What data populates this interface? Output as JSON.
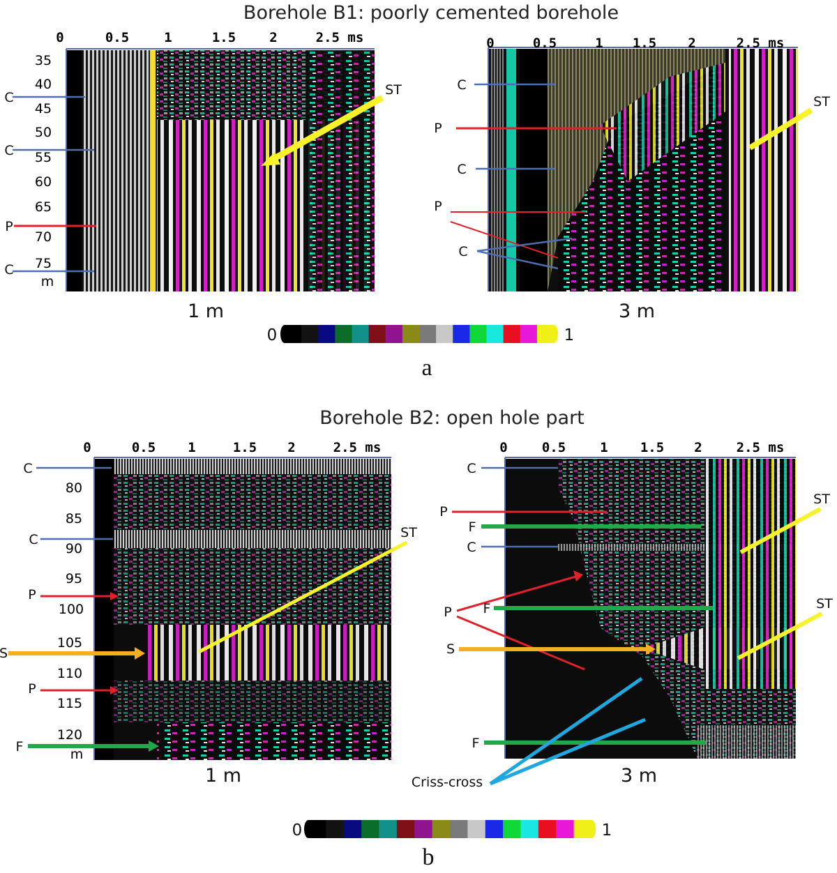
{
  "figure": {
    "panels": [
      {
        "id": "a",
        "title": "Borehole B1: poorly cemented borehole",
        "panel_label": "a",
        "time_ticks": [
          "0",
          "0.5",
          "1",
          "1.5",
          "2",
          "2.5 ms"
        ],
        "depth_ticks": [
          "35",
          "40",
          "45",
          "50",
          "55",
          "60",
          "65",
          "70",
          "75"
        ],
        "depth_unit": "m",
        "left_plot": {
          "caption": "1 m",
          "markers": [
            {
              "label": "C",
              "type": "cement"
            },
            {
              "label": "C",
              "type": "cement"
            },
            {
              "label": "P",
              "type": "p-wave"
            },
            {
              "label": "C",
              "type": "cement"
            },
            {
              "label": "ST",
              "type": "stoneley"
            }
          ]
        },
        "right_plot": {
          "caption": "3 m",
          "markers": [
            {
              "label": "C",
              "type": "cement"
            },
            {
              "label": "P",
              "type": "p-wave"
            },
            {
              "label": "C",
              "type": "cement"
            },
            {
              "label": "P",
              "type": "p-wave"
            },
            {
              "label": "C",
              "type": "cement"
            },
            {
              "label": "ST",
              "type": "stoneley"
            }
          ]
        }
      },
      {
        "id": "b",
        "title": "Borehole B2: open hole part",
        "panel_label": "b",
        "time_ticks": [
          "0",
          "0.5",
          "1",
          "1.5",
          "2",
          "2.5 ms"
        ],
        "depth_ticks": [
          "80",
          "85",
          "90",
          "95",
          "100",
          "105",
          "110",
          "115",
          "120"
        ],
        "depth_unit": "m",
        "left_plot": {
          "caption": "1 m",
          "markers": [
            {
              "label": "C",
              "type": "cement"
            },
            {
              "label": "C",
              "type": "cement"
            },
            {
              "label": "P",
              "type": "p-wave"
            },
            {
              "label": "S",
              "type": "s-wave"
            },
            {
              "label": "P",
              "type": "p-wave"
            },
            {
              "label": "F",
              "type": "fracture"
            },
            {
              "label": "ST",
              "type": "stoneley"
            }
          ]
        },
        "right_plot": {
          "caption": "3 m",
          "markers": [
            {
              "label": "C",
              "type": "cement"
            },
            {
              "label": "P",
              "type": "p-wave"
            },
            {
              "label": "F",
              "type": "fracture"
            },
            {
              "label": "C",
              "type": "cement"
            },
            {
              "label": "P",
              "type": "p-wave"
            },
            {
              "label": "F",
              "type": "fracture"
            },
            {
              "label": "S",
              "type": "s-wave"
            },
            {
              "label": "F",
              "type": "fracture"
            },
            {
              "label": "ST",
              "type": "stoneley"
            },
            {
              "label": "ST",
              "type": "stoneley"
            },
            {
              "label": "Criss-cross",
              "type": "criss-cross"
            }
          ]
        }
      }
    ],
    "colorbar": {
      "min_label": "0",
      "max_label": "1",
      "colors": [
        "#000000",
        "#121212",
        "#0a0a80",
        "#0a6e2a",
        "#12908a",
        "#801018",
        "#901490",
        "#8a8a18",
        "#7a7a7a",
        "#c8c8c8",
        "#1a28e8",
        "#10d838",
        "#18e8e0",
        "#e81020",
        "#e818d8",
        "#f0f018"
      ]
    },
    "marker_colors": {
      "cement": "#4d6fb0",
      "p-wave": "#e0202a",
      "s-wave": "#f2b01e",
      "fracture": "#22a84a",
      "stoneley": "#f7f22a",
      "criss-cross": "#1fa8e0"
    }
  }
}
